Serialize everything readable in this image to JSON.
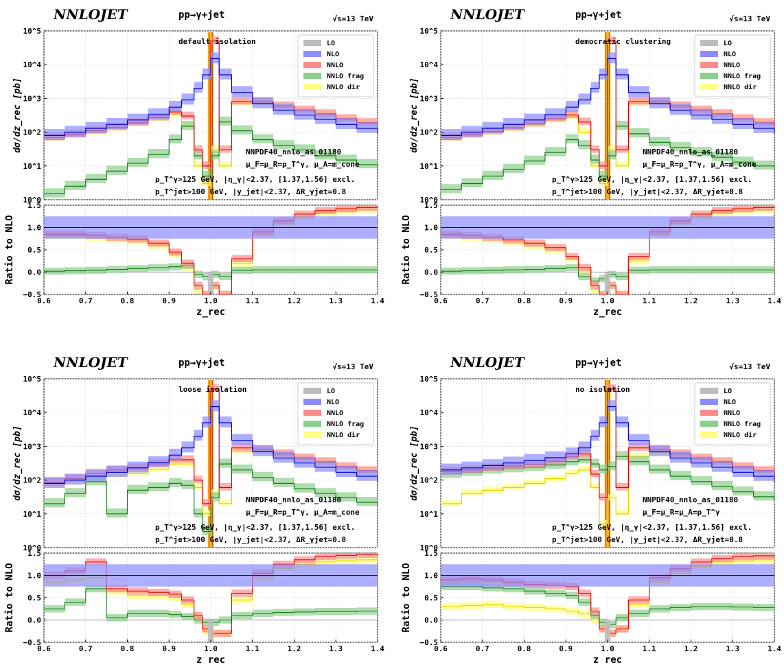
{
  "figure": {
    "brand": "NNLOJET",
    "process": "pp→γ+jet",
    "sqrts": "√s=13 TeV",
    "ylabel_top": "dσ/dz_rec [pb]",
    "ylabel_ratio": "Ratio to NLO",
    "xlabel": "z_rec",
    "pdf": "NNPDF40_nnlo_as_01180",
    "cut1": "p_T^γ>125 GeV, |η_γ|<2.37, [1.37,1.56] excl.",
    "cut2": "p_T^jet>100 GeV, |y_jet|<2.37, ΔR_γjet=0.8",
    "legend": [
      "LO",
      "NLO",
      "NNLO",
      "NNLO frag",
      "NNLO dir"
    ],
    "colors": {
      "LO": "#bdbdbd",
      "NLO": "#8c8cff",
      "NNLO": "#ff8c8c",
      "NNLO_line": "#e00000",
      "frag": "#8ccf8c",
      "frag_line": "#1a7a1a",
      "dir": "#ffff80",
      "dir_line": "#e6d000",
      "NLO_line": "#0000cc",
      "spike": "#ffa500",
      "spike_line": "#b06000"
    },
    "x_ticks": [
      "0.6",
      "0.7",
      "0.8",
      "0.9",
      "1.0",
      "1.1",
      "1.2",
      "1.3",
      "1.4"
    ],
    "y_ticks_top": [
      "10^0",
      "10^1",
      "10^2",
      "10^3",
      "10^4",
      "10^5"
    ],
    "y_ticks_ratio": [
      "−0.5",
      "0.0",
      "0.5",
      "1.0",
      "1.5"
    ]
  },
  "chart_data": [
    {
      "type": "line",
      "panel": "top-left",
      "isolation": "default isolation",
      "scale_text": "μ_F=μ_R=p_T^γ, μ_A=m_cone",
      "xlim": [
        0.6,
        1.4
      ],
      "ylim_top": [
        1,
        100000
      ],
      "ylim_ratio": [
        -0.5,
        1.5
      ],
      "legend_position": "top-right",
      "x": [
        0.6,
        0.65,
        0.7,
        0.75,
        0.8,
        0.85,
        0.9,
        0.93,
        0.96,
        0.98,
        1.0,
        1.02,
        1.05,
        1.1,
        1.15,
        1.2,
        1.25,
        1.3,
        1.35,
        1.4
      ],
      "series": [
        {
          "name": "NLO",
          "values": [
            80,
            100,
            130,
            170,
            230,
            330,
            550,
            900,
            2000,
            5000,
            15000,
            5000,
            1500,
            700,
            450,
            320,
            240,
            170,
            130,
            90
          ]
        },
        {
          "name": "NNLO",
          "values": [
            70,
            85,
            110,
            140,
            190,
            270,
            400,
            300,
            30,
            10,
            50000,
            30,
            800,
            800,
            600,
            450,
            350,
            250,
            190,
            130
          ]
        },
        {
          "name": "NNLO frag",
          "values": [
            1.5,
            2.5,
            4,
            7,
            12,
            22,
            60,
            150,
            20,
            5,
            20,
            200,
            110,
            60,
            40,
            30,
            20,
            15,
            11,
            8
          ]
        },
        {
          "name": "NNLO dir",
          "values": [
            65,
            80,
            100,
            130,
            175,
            250,
            340,
            150,
            10,
            3,
            30,
            10,
            700,
            750,
            560,
            420,
            330,
            235,
            180,
            125
          ]
        }
      ],
      "ratio": [
        {
          "name": "NLO",
          "values": [
            1,
            1,
            1,
            1,
            1,
            1,
            1,
            1,
            1,
            1,
            1,
            1,
            1,
            1,
            1,
            1,
            1,
            1,
            1,
            1
          ]
        },
        {
          "name": "NNLO",
          "values": [
            0.85,
            0.85,
            0.82,
            0.78,
            0.74,
            0.65,
            0.45,
            0.2,
            -0.3,
            -0.5,
            -0.3,
            -0.5,
            0.3,
            0.9,
            1.15,
            1.3,
            1.38,
            1.42,
            1.45,
            1.47
          ]
        },
        {
          "name": "NNLO frag",
          "values": [
            0.02,
            0.03,
            0.04,
            0.06,
            0.08,
            0.1,
            0.12,
            0.15,
            -0.05,
            -0.1,
            -0.05,
            -0.1,
            0.04,
            0.05,
            0.05,
            0.05,
            0.05,
            0.05,
            0.05,
            0.06
          ]
        },
        {
          "name": "NNLO dir",
          "values": [
            0.82,
            0.82,
            0.78,
            0.74,
            0.7,
            0.6,
            0.4,
            0.1,
            -0.4,
            -0.5,
            -0.3,
            -0.5,
            0.2,
            0.85,
            1.1,
            1.25,
            1.33,
            1.37,
            1.4,
            1.42
          ]
        }
      ]
    },
    {
      "type": "line",
      "panel": "top-right",
      "isolation": "democratic clustering",
      "scale_text": "μ_F=μ_R=p_T^γ, μ_A=m_cone",
      "xlim": [
        0.6,
        1.4
      ],
      "ylim_top": [
        1,
        100000
      ],
      "ylim_ratio": [
        -0.5,
        1.5
      ],
      "legend_position": "top-right",
      "x": [
        0.6,
        0.65,
        0.7,
        0.75,
        0.8,
        0.85,
        0.9,
        0.93,
        0.96,
        0.98,
        1.0,
        1.02,
        1.05,
        1.1,
        1.15,
        1.2,
        1.25,
        1.3,
        1.35,
        1.4
      ],
      "series": [
        {
          "name": "NLO",
          "values": [
            80,
            100,
            130,
            170,
            230,
            330,
            550,
            900,
            2000,
            5000,
            15000,
            5000,
            1500,
            700,
            450,
            320,
            240,
            170,
            130,
            90
          ]
        },
        {
          "name": "NNLO",
          "values": [
            70,
            85,
            105,
            135,
            180,
            250,
            320,
            200,
            30,
            10,
            50000,
            30,
            800,
            800,
            600,
            450,
            350,
            250,
            190,
            130
          ]
        },
        {
          "name": "NNLO frag",
          "values": [
            2,
            3,
            5,
            8,
            14,
            25,
            60,
            40,
            15,
            5,
            20,
            150,
            90,
            50,
            35,
            25,
            18,
            13,
            10,
            7
          ]
        },
        {
          "name": "NNLO dir",
          "values": [
            65,
            80,
            100,
            125,
            170,
            230,
            280,
            100,
            10,
            3,
            30,
            10,
            700,
            750,
            560,
            420,
            330,
            235,
            180,
            125
          ]
        }
      ],
      "ratio": [
        {
          "name": "NLO",
          "values": [
            1,
            1,
            1,
            1,
            1,
            1,
            1,
            1,
            1,
            1,
            1,
            1,
            1,
            1,
            1,
            1,
            1,
            1,
            1,
            1
          ]
        },
        {
          "name": "NNLO",
          "values": [
            0.85,
            0.82,
            0.78,
            0.72,
            0.65,
            0.55,
            0.35,
            0.1,
            -0.3,
            -0.5,
            -0.3,
            -0.5,
            0.35,
            0.9,
            1.15,
            1.3,
            1.38,
            1.42,
            1.45,
            1.47
          ]
        },
        {
          "name": "NNLO frag",
          "values": [
            0.02,
            0.03,
            0.04,
            0.05,
            0.06,
            0.08,
            0.1,
            -0.1,
            -0.2,
            -0.15,
            -0.05,
            -0.1,
            0.04,
            0.05,
            0.05,
            0.05,
            0.05,
            0.05,
            0.05,
            0.05
          ]
        },
        {
          "name": "NNLO dir",
          "values": [
            0.82,
            0.78,
            0.74,
            0.68,
            0.6,
            0.5,
            0.3,
            0.05,
            -0.4,
            -0.5,
            -0.3,
            -0.5,
            0.25,
            0.85,
            1.1,
            1.25,
            1.33,
            1.37,
            1.4,
            1.42
          ]
        }
      ]
    },
    {
      "type": "line",
      "panel": "bottom-left",
      "isolation": "loose isolation",
      "scale_text": "μ_F=μ_R=p_T^γ, μ_A=m_cone",
      "xlim": [
        0.6,
        1.4
      ],
      "ylim_top": [
        1,
        100000
      ],
      "ylim_ratio": [
        -0.5,
        1.5
      ],
      "legend_position": "top-right",
      "x": [
        0.6,
        0.65,
        0.7,
        0.75,
        0.8,
        0.85,
        0.9,
        0.93,
        0.96,
        0.98,
        1.0,
        1.02,
        1.05,
        1.1,
        1.15,
        1.2,
        1.25,
        1.3,
        1.35,
        1.4
      ],
      "series": [
        {
          "name": "NLO",
          "values": [
            80,
            100,
            130,
            170,
            230,
            330,
            550,
            900,
            2000,
            5000,
            15000,
            5000,
            1500,
            700,
            450,
            320,
            240,
            170,
            130,
            90
          ]
        },
        {
          "name": "NNLO",
          "values": [
            85,
            110,
            160,
            200,
            230,
            300,
            400,
            400,
            100,
            20,
            50000,
            60,
            900,
            800,
            600,
            450,
            350,
            250,
            190,
            130
          ]
        },
        {
          "name": "NNLO frag",
          "values": [
            20,
            40,
            90,
            10,
            50,
            60,
            80,
            70,
            10,
            3,
            30,
            300,
            200,
            120,
            80,
            55,
            40,
            30,
            22,
            15
          ]
        },
        {
          "name": "NNLO dir",
          "values": [
            70,
            90,
            120,
            140,
            160,
            210,
            300,
            300,
            60,
            10,
            40,
            20,
            700,
            700,
            560,
            420,
            330,
            235,
            180,
            125
          ]
        }
      ],
      "ratio": [
        {
          "name": "NLO",
          "values": [
            1,
            1,
            1,
            1,
            1,
            1,
            1,
            1,
            1,
            1,
            1,
            1,
            1,
            1,
            1,
            1,
            1,
            1,
            1,
            1
          ]
        },
        {
          "name": "NNLO",
          "values": [
            1.0,
            1.1,
            1.3,
            0.7,
            0.65,
            0.62,
            0.58,
            0.45,
            0.1,
            -0.2,
            -0.3,
            -0.3,
            0.6,
            1.05,
            1.25,
            1.35,
            1.42,
            1.45,
            1.47,
            1.49
          ]
        },
        {
          "name": "NNLO frag",
          "values": [
            0.25,
            0.4,
            0.7,
            0.05,
            0.15,
            0.15,
            0.12,
            0.08,
            0.0,
            -0.05,
            -0.05,
            0.0,
            0.1,
            0.15,
            0.17,
            0.18,
            0.19,
            0.19,
            0.2,
            0.2
          ]
        },
        {
          "name": "NNLO dir",
          "values": [
            0.85,
            0.9,
            0.95,
            0.65,
            0.55,
            0.55,
            0.5,
            0.35,
            0.05,
            -0.25,
            -0.3,
            -0.3,
            0.45,
            0.95,
            1.15,
            1.25,
            1.3,
            1.33,
            1.35,
            1.37
          ]
        }
      ]
    },
    {
      "type": "line",
      "panel": "bottom-right",
      "isolation": "no isolation",
      "scale_text": "μ_F=μ_R=μ_A=p_T^γ",
      "xlim": [
        0.6,
        1.4
      ],
      "ylim_top": [
        1,
        100000
      ],
      "ylim_ratio": [
        -0.5,
        1.5
      ],
      "legend_position": "top-right",
      "x": [
        0.6,
        0.65,
        0.7,
        0.75,
        0.8,
        0.85,
        0.9,
        0.93,
        0.96,
        0.98,
        1.0,
        1.02,
        1.05,
        1.1,
        1.15,
        1.2,
        1.25,
        1.3,
        1.35,
        1.4
      ],
      "series": [
        {
          "name": "NLO",
          "values": [
            200,
            230,
            270,
            320,
            380,
            460,
            600,
            900,
            2000,
            5000,
            15000,
            5000,
            1500,
            700,
            450,
            320,
            240,
            170,
            130,
            90
          ]
        },
        {
          "name": "NNLO",
          "values": [
            180,
            200,
            230,
            260,
            290,
            360,
            500,
            600,
            150,
            30,
            50000,
            60,
            900,
            800,
            600,
            450,
            350,
            250,
            190,
            130
          ]
        },
        {
          "name": "NNLO frag",
          "values": [
            150,
            170,
            200,
            220,
            240,
            280,
            350,
            400,
            300,
            200,
            250,
            500,
            350,
            200,
            130,
            90,
            65,
            45,
            32,
            22
          ]
        },
        {
          "name": "NNLO dir",
          "values": [
            20,
            40,
            50,
            60,
            80,
            110,
            160,
            200,
            60,
            5,
            30,
            10,
            500,
            650,
            520,
            400,
            320,
            235,
            180,
            125
          ]
        }
      ],
      "ratio": [
        {
          "name": "NLO",
          "values": [
            1,
            1,
            1,
            1,
            1,
            1,
            1,
            1,
            1,
            1,
            1,
            1,
            1,
            1,
            1,
            1,
            1,
            1,
            1,
            1
          ]
        },
        {
          "name": "NNLO",
          "values": [
            0.9,
            0.92,
            0.9,
            0.85,
            0.8,
            0.78,
            0.75,
            0.6,
            0.2,
            -0.2,
            -0.3,
            -0.2,
            0.45,
            0.95,
            1.15,
            1.3,
            1.38,
            1.42,
            1.44,
            1.46
          ]
        },
        {
          "name": "NNLO frag",
          "values": [
            0.75,
            0.75,
            0.72,
            0.7,
            0.65,
            0.6,
            0.55,
            0.4,
            0.1,
            -0.05,
            -0.1,
            0.05,
            0.15,
            0.25,
            0.28,
            0.3,
            0.3,
            0.29,
            0.28,
            0.27
          ]
        },
        {
          "name": "NNLO dir",
          "values": [
            0.3,
            0.32,
            0.35,
            0.3,
            0.28,
            0.25,
            0.2,
            0.15,
            0.0,
            -0.2,
            -0.3,
            -0.2,
            0.35,
            0.85,
            1.05,
            1.2,
            1.28,
            1.32,
            1.35,
            1.38
          ]
        }
      ]
    }
  ]
}
